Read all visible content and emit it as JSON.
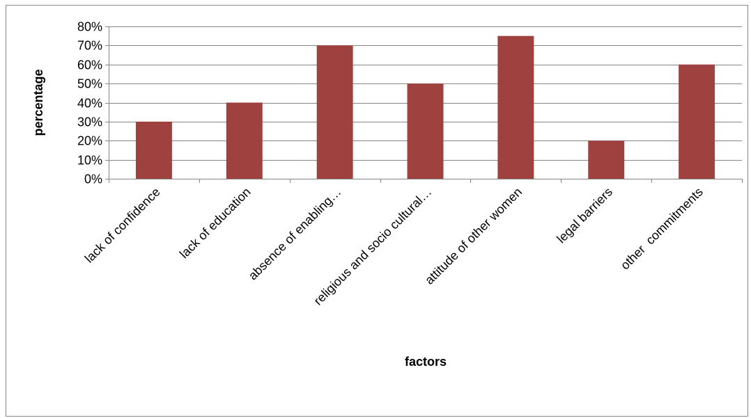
{
  "chart_data": {
    "type": "bar",
    "title": "",
    "xlabel": "factors",
    "ylabel": "percentage",
    "categories": [
      "lack of confidence",
      "lack of education",
      "absence of enabling…",
      "religious and socio cultural…",
      "attitude of other women",
      "legal barriers",
      "other  commitments"
    ],
    "values": [
      30,
      40,
      70,
      50,
      75,
      20,
      60
    ],
    "value_unit": "%",
    "ylim": [
      0,
      80
    ],
    "yticks": [
      0,
      10,
      20,
      30,
      40,
      50,
      60,
      70,
      80
    ],
    "ytick_labels": [
      "0%",
      "10%",
      "20%",
      "30%",
      "40%",
      "50%",
      "60%",
      "70%",
      "80%"
    ],
    "grid": true,
    "legend": "none",
    "bar_color": "#9e413f"
  }
}
